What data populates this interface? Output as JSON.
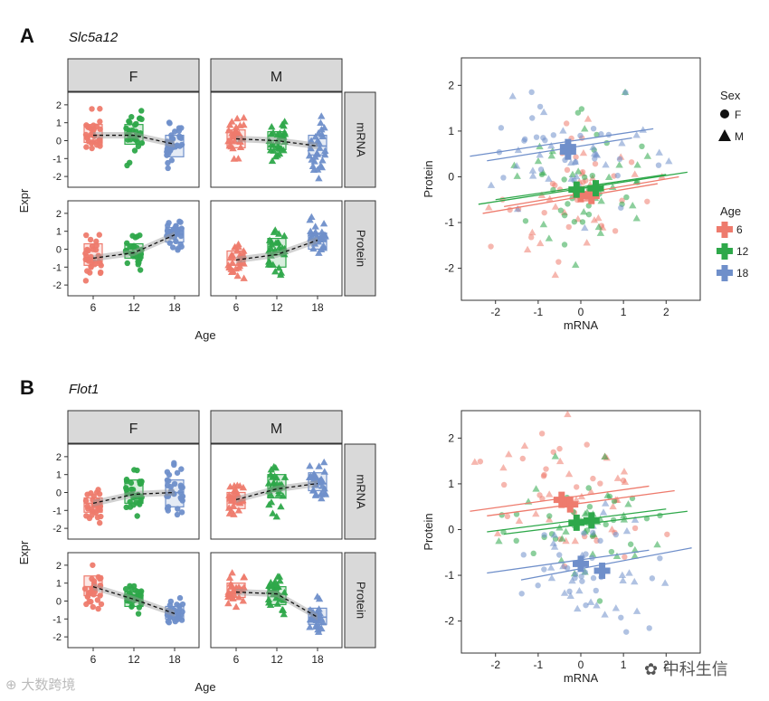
{
  "figure": {
    "panels": [
      {
        "letter": "A",
        "gene": "Slc5a12"
      },
      {
        "letter": "B",
        "gene": "Flot1"
      }
    ],
    "watermark_left": "大数跨境",
    "watermark_right": "中科生信"
  },
  "chart_data": [
    {
      "type": "box",
      "title": "Slc5a12",
      "facet_cols": [
        "F",
        "M"
      ],
      "facet_rows": [
        "mRNA",
        "Protein"
      ],
      "categories": [
        "6",
        "12",
        "18"
      ],
      "xlabel": "Age",
      "ylabel": "Expr",
      "yticks": [
        -2,
        -1,
        0,
        1,
        2
      ],
      "ylim": [
        -2.6,
        2.7
      ],
      "colors": {
        "6": "#ee7b6d",
        "12": "#2ea84a",
        "18": "#6f8fca"
      },
      "cells": [
        {
          "row": "mRNA",
          "col": "F",
          "medians": [
            0.3,
            0.3,
            -0.2
          ],
          "q1": [
            -0.1,
            -0.2,
            -0.9
          ],
          "q3": [
            0.9,
            0.9,
            0.3
          ],
          "n": [
            30,
            30,
            30
          ]
        },
        {
          "row": "mRNA",
          "col": "M",
          "medians": [
            0.1,
            0.0,
            -0.3
          ],
          "q1": [
            -0.4,
            -0.5,
            -0.8
          ],
          "q3": [
            0.6,
            0.5,
            0.3
          ],
          "n": [
            30,
            30,
            30
          ]
        },
        {
          "row": "Protein",
          "col": "F",
          "medians": [
            -0.5,
            -0.2,
            0.8
          ],
          "q1": [
            -0.9,
            -0.5,
            0.4
          ],
          "q3": [
            0.3,
            0.3,
            1.2
          ],
          "n": [
            30,
            30,
            30
          ]
        },
        {
          "row": "Protein",
          "col": "M",
          "medians": [
            -0.6,
            -0.3,
            0.5
          ],
          "q1": [
            -0.9,
            -1.0,
            0.0
          ],
          "q3": [
            -0.1,
            0.6,
            0.9
          ],
          "n": [
            30,
            30,
            30
          ]
        }
      ]
    },
    {
      "type": "scatter",
      "title": "Slc5a12",
      "xlabel": "mRNA",
      "ylabel": "Protein",
      "xticks": [
        -2,
        -1,
        0,
        1,
        2
      ],
      "yticks": [
        -2,
        -1,
        0,
        1,
        2
      ],
      "xlim": [
        -2.8,
        2.8
      ],
      "ylim": [
        -2.7,
        2.6
      ],
      "legend_sex_title": "Sex",
      "legend_sex": [
        "F",
        "M"
      ],
      "legend_age_title": "Age",
      "legend_age": [
        "6",
        "12",
        "18"
      ],
      "centroids": [
        {
          "age": "6",
          "sex": "F",
          "x": 0.25,
          "y": -0.42
        },
        {
          "age": "6",
          "sex": "M",
          "x": 0.0,
          "y": -0.38
        },
        {
          "age": "12",
          "sex": "F",
          "x": -0.1,
          "y": -0.28
        },
        {
          "age": "12",
          "sex": "M",
          "x": 0.35,
          "y": -0.25
        },
        {
          "age": "18",
          "sex": "F",
          "x": -0.3,
          "y": 0.65
        },
        {
          "age": "18",
          "sex": "M",
          "x": -0.3,
          "y": 0.55
        }
      ],
      "fit_lines": [
        {
          "age": "6",
          "x": [
            -2.3,
            1.8
          ],
          "y": [
            -0.8,
            -0.15
          ]
        },
        {
          "age": "6",
          "x": [
            -1.8,
            2.3
          ],
          "y": [
            -0.65,
            0.0
          ]
        },
        {
          "age": "12",
          "x": [
            -2.4,
            2.5
          ],
          "y": [
            -0.6,
            0.1
          ]
        },
        {
          "age": "12",
          "x": [
            -2.0,
            2.0
          ],
          "y": [
            -0.5,
            0.05
          ]
        },
        {
          "age": "18",
          "x": [
            -2.6,
            1.7
          ],
          "y": [
            0.45,
            1.05
          ]
        },
        {
          "age": "18",
          "x": [
            -2.2,
            1.2
          ],
          "y": [
            0.35,
            0.85
          ]
        }
      ],
      "groups": [
        {
          "age": "6",
          "cx": 0.05,
          "cy": -0.45
        },
        {
          "age": "12",
          "cx": 0.05,
          "cy": -0.25
        },
        {
          "age": "18",
          "cx": -0.2,
          "cy": 0.6
        }
      ]
    },
    {
      "type": "box",
      "title": "Flot1",
      "facet_cols": [
        "F",
        "M"
      ],
      "facet_rows": [
        "mRNA",
        "Protein"
      ],
      "categories": [
        "6",
        "12",
        "18"
      ],
      "xlabel": "Age",
      "ylabel": "Expr",
      "yticks": [
        -2,
        -1,
        0,
        1,
        2
      ],
      "ylim": [
        -2.6,
        2.7
      ],
      "colors": {
        "6": "#ee7b6d",
        "12": "#2ea84a",
        "18": "#6f8fca"
      },
      "cells": [
        {
          "row": "mRNA",
          "col": "F",
          "medians": [
            -0.6,
            -0.1,
            0.0
          ],
          "q1": [
            -1.1,
            -0.6,
            -0.8
          ],
          "q3": [
            -0.3,
            0.7,
            0.7
          ],
          "n": [
            30,
            30,
            30
          ]
        },
        {
          "row": "mRNA",
          "col": "M",
          "medians": [
            -0.4,
            0.2,
            0.5
          ],
          "q1": [
            -0.9,
            -0.3,
            0.1
          ],
          "q3": [
            0.0,
            1.0,
            1.1
          ],
          "n": [
            30,
            30,
            30
          ]
        },
        {
          "row": "Protein",
          "col": "F",
          "medians": [
            0.8,
            0.1,
            -0.7
          ],
          "q1": [
            0.3,
            -0.3,
            -1.0
          ],
          "q3": [
            1.4,
            0.5,
            -0.3
          ],
          "n": [
            30,
            30,
            30
          ]
        },
        {
          "row": "Protein",
          "col": "M",
          "medians": [
            0.5,
            0.4,
            -0.9
          ],
          "q1": [
            0.2,
            -0.2,
            -1.3
          ],
          "q3": [
            1.0,
            0.8,
            -0.4
          ],
          "n": [
            30,
            30,
            30
          ]
        }
      ]
    },
    {
      "type": "scatter",
      "title": "Flot1",
      "xlabel": "mRNA",
      "ylabel": "Protein",
      "xticks": [
        -2,
        -1,
        0,
        1,
        2
      ],
      "yticks": [
        -2,
        -1,
        0,
        1,
        2
      ],
      "xlim": [
        -2.8,
        2.8
      ],
      "ylim": [
        -2.7,
        2.6
      ],
      "legend_sex_title": "",
      "legend_sex": [],
      "legend_age_title": "",
      "legend_age": [],
      "centroids": [
        {
          "age": "6",
          "sex": "F",
          "x": -0.45,
          "y": 0.65
        },
        {
          "age": "6",
          "sex": "M",
          "x": -0.25,
          "y": 0.55
        },
        {
          "age": "12",
          "sex": "F",
          "x": -0.1,
          "y": 0.15
        },
        {
          "age": "12",
          "sex": "M",
          "x": 0.25,
          "y": 0.2
        },
        {
          "age": "18",
          "sex": "F",
          "x": 0.0,
          "y": -0.75
        },
        {
          "age": "18",
          "sex": "M",
          "x": 0.5,
          "y": -0.9
        }
      ],
      "fit_lines": [
        {
          "age": "6",
          "x": [
            -2.6,
            1.6
          ],
          "y": [
            0.4,
            0.95
          ]
        },
        {
          "age": "6",
          "x": [
            -2.2,
            2.2
          ],
          "y": [
            0.3,
            0.85
          ]
        },
        {
          "age": "12",
          "x": [
            -2.2,
            2.0
          ],
          "y": [
            -0.05,
            0.45
          ]
        },
        {
          "age": "12",
          "x": [
            -1.8,
            2.5
          ],
          "y": [
            -0.1,
            0.4
          ]
        },
        {
          "age": "18",
          "x": [
            -2.2,
            1.6
          ],
          "y": [
            -0.95,
            -0.45
          ]
        },
        {
          "age": "18",
          "x": [
            -1.4,
            2.6
          ],
          "y": [
            -1.1,
            -0.4
          ]
        }
      ],
      "groups": [
        {
          "age": "6",
          "cx": -0.3,
          "cy": 0.6
        },
        {
          "age": "12",
          "cx": 0.05,
          "cy": 0.15
        },
        {
          "age": "18",
          "cx": 0.2,
          "cy": -0.8
        }
      ]
    }
  ]
}
